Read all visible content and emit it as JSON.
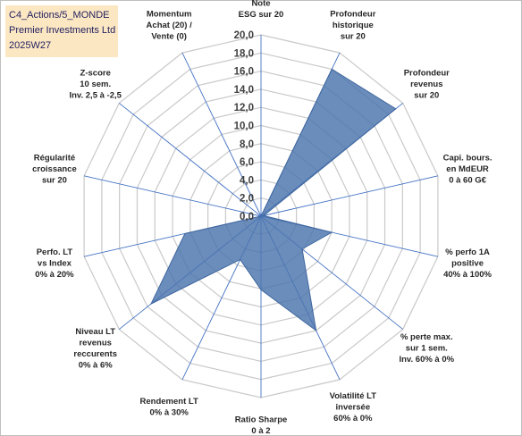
{
  "header": {
    "line1": "C4_Actions/5_MONDE",
    "line2": "Premier Investments Ltd",
    "line3": "2025W27"
  },
  "chart_data": {
    "type": "radar",
    "rlim": [
      0,
      20
    ],
    "ticks": [
      "0,0",
      "2,0",
      "4,0",
      "6,0",
      "8,0",
      "10,0",
      "12,0",
      "14,0",
      "16,0",
      "18,0",
      "20,0"
    ],
    "axes": [
      [
        "Note",
        "ESG sur 20"
      ],
      [
        "Profondeur",
        "historique",
        "sur 20"
      ],
      [
        "Profondeur",
        "revenus",
        "sur 20"
      ],
      [
        "Capi. bours.",
        "en MdEUR",
        "0 à 60 G€"
      ],
      [
        "% perfo 1A",
        "positive",
        "40% à 100%"
      ],
      [
        "% perte max.",
        "sur 1 sem.",
        "Inv. 60% à 0%"
      ],
      [
        "Volatilité LT",
        "inversée",
        "60% à 0%"
      ],
      [
        "Ratio Sharpe",
        "0 à 2"
      ],
      [
        "Rendement LT",
        "0% à 30%"
      ],
      [
        "Niveau LT",
        "revenus",
        "reccurents",
        "0% à 6%"
      ],
      [
        "Perfo. LT",
        "vs Index",
        "0% à 20%"
      ],
      [
        "Régularité",
        "croissance",
        "sur 20"
      ],
      [
        "Z-score",
        "10 sem.",
        "Inv. 2,5 à -2,5"
      ],
      [
        "Momentum",
        "Achat (20) /",
        "Vente (0)"
      ]
    ],
    "series": [
      {
        "values": [
          0,
          18,
          19,
          0.3,
          8,
          5.8,
          14,
          8.1,
          5.3,
          15.5,
          8.6,
          0,
          0,
          0
        ],
        "color": "#4a74ad"
      }
    ],
    "grid": true
  }
}
